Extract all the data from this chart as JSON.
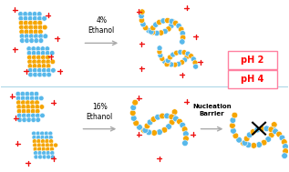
{
  "bg_color": "#ffffff",
  "blue": "#58B8EA",
  "gold": "#F5A500",
  "red": "#EE1111",
  "black": "#000000",
  "ph2_text": "pH 2",
  "ph4_text": "pH 4",
  "ethanol_top": "4%\nEthanol",
  "ethanol_bot": "16%\nEthanol",
  "nucleation_text": "Nucleation\nBarrier",
  "figsize": [
    3.17,
    1.89
  ],
  "dpi": 100
}
